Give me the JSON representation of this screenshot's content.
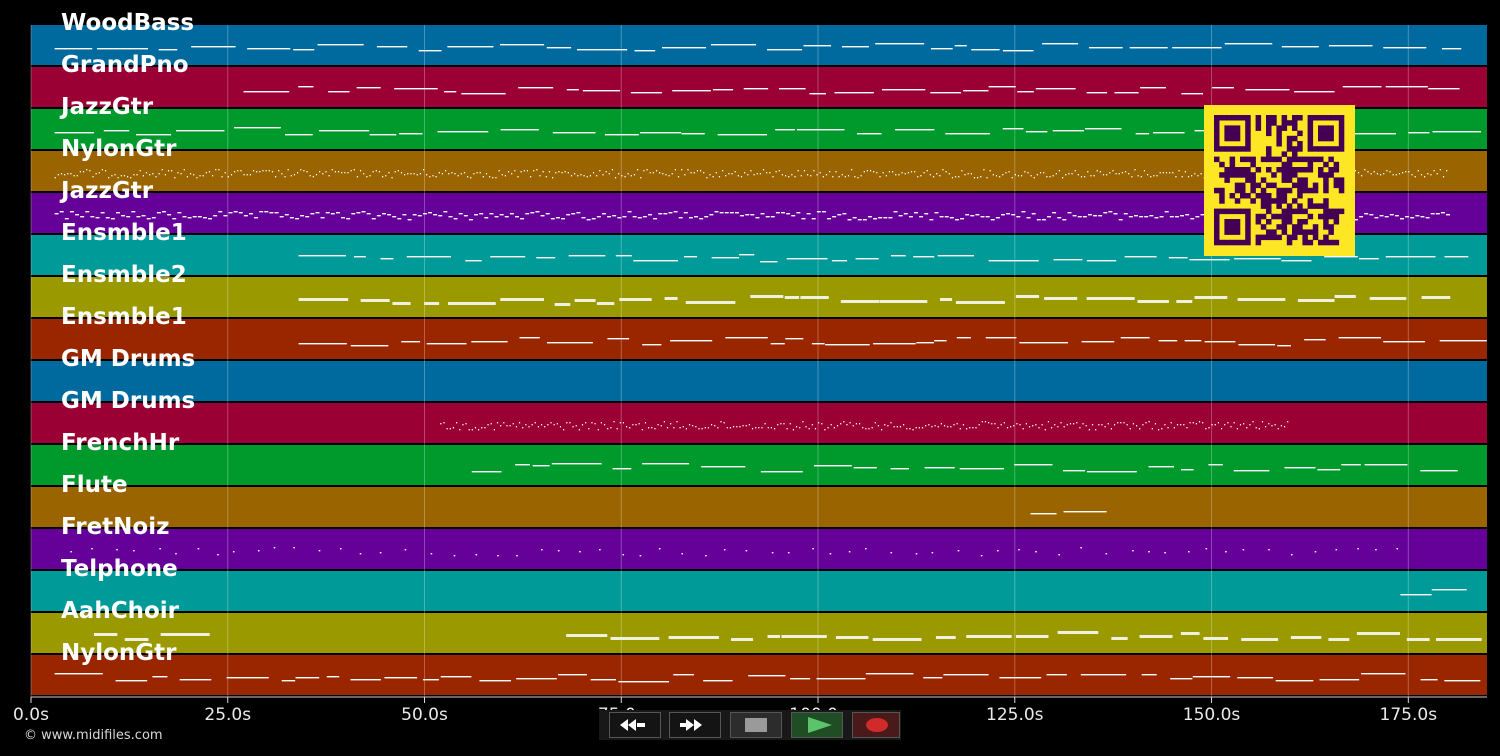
{
  "duration_s": 185,
  "tracks": [
    {
      "name": "WoodBass",
      "color": "#006a9e"
    },
    {
      "name": "GrandPno",
      "color": "#9a0034"
    },
    {
      "name": "JazzGtr",
      "color": "#00992c"
    },
    {
      "name": "NylonGtr",
      "color": "#9a6400"
    },
    {
      "name": "JazzGtr",
      "color": "#650099"
    },
    {
      "name": "Ensmble1",
      "color": "#009a99"
    },
    {
      "name": "Ensmble2",
      "color": "#9a9a00"
    },
    {
      "name": "Ensmble1",
      "color": "#9a2600"
    },
    {
      "name": "GM Drums",
      "color": "#006a9e"
    },
    {
      "name": "GM Drums",
      "color": "#9a0034"
    },
    {
      "name": "FrenchHr",
      "color": "#00992c"
    },
    {
      "name": "Flute",
      "color": "#9a6400"
    },
    {
      "name": "FretNoiz",
      "color": "#650099"
    },
    {
      "name": "Telphone",
      "color": "#009a99"
    },
    {
      "name": "AahChoir",
      "color": "#9a9a00"
    },
    {
      "name": "NylonGtr",
      "color": "#9a2600"
    }
  ],
  "time_ticks": [
    "0.0s",
    "25.0s",
    "50.0s",
    "75.0s",
    "100.0s",
    "125.0s",
    "150.0s",
    "175.0s"
  ],
  "tick_values": [
    0,
    25,
    50,
    75,
    100,
    125,
    150,
    175
  ],
  "copyright": "© www.midifiles.com",
  "transport": [
    {
      "id": "rewind",
      "icon": "rewind-icon"
    },
    {
      "id": "fast-forward",
      "icon": "fast-forward-icon"
    },
    {
      "id": "stop",
      "icon": "stop-icon"
    },
    {
      "id": "play",
      "icon": "play-icon"
    },
    {
      "id": "record",
      "icon": "record-icon"
    }
  ]
}
